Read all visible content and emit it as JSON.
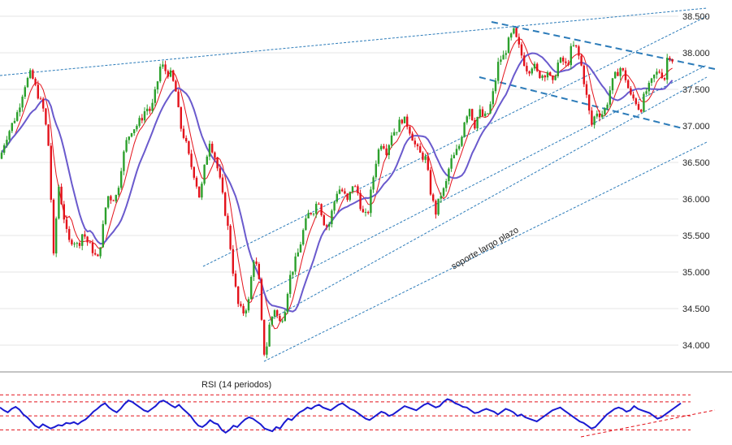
{
  "chart_data": [
    {
      "type": "candlestick",
      "title": "",
      "ylim": [
        33.7,
        38.6
      ],
      "y_ticks": [
        "38.500",
        "38.000",
        "37.500",
        "37.000",
        "36.500",
        "36.000",
        "35.500",
        "35.000",
        "34.500",
        "34.000"
      ],
      "grid": true,
      "colors": {
        "up": "#2ca02c",
        "down": "#e3121b",
        "ma_fast": "#e3121b",
        "ma_slow": "#6a5acd",
        "trend": "#2b7bb9",
        "grid": "#e6e6e6"
      },
      "annotations": [
        {
          "text": "soporte largo plazo"
        }
      ],
      "close_path": [
        [
          0,
          36.55
        ],
        [
          6,
          36.8
        ],
        [
          14,
          37.0
        ],
        [
          22,
          37.2
        ],
        [
          30,
          37.55
        ],
        [
          38,
          37.72
        ],
        [
          46,
          37.45
        ],
        [
          54,
          37.2
        ],
        [
          60,
          36.7
        ],
        [
          66,
          35.2
        ],
        [
          72,
          36.2
        ],
        [
          78,
          35.8
        ],
        [
          84,
          35.4
        ],
        [
          90,
          35.45
        ],
        [
          96,
          35.35
        ],
        [
          102,
          35.55
        ],
        [
          108,
          35.4
        ],
        [
          114,
          35.3
        ],
        [
          120,
          35.15
        ],
        [
          126,
          35.55
        ],
        [
          132,
          36.05
        ],
        [
          138,
          36.0
        ],
        [
          144,
          36.05
        ],
        [
          150,
          36.5
        ],
        [
          156,
          36.8
        ],
        [
          162,
          36.95
        ],
        [
          168,
          37.0
        ],
        [
          174,
          37.1
        ],
        [
          180,
          37.25
        ],
        [
          186,
          37.2
        ],
        [
          192,
          37.5
        ],
        [
          198,
          37.85
        ],
        [
          204,
          37.75
        ],
        [
          210,
          37.7
        ],
        [
          216,
          37.5
        ],
        [
          222,
          37.0
        ],
        [
          228,
          36.8
        ],
        [
          234,
          36.5
        ],
        [
          240,
          36.3
        ],
        [
          246,
          36.0
        ],
        [
          252,
          36.45
        ],
        [
          258,
          36.8
        ],
        [
          264,
          36.6
        ],
        [
          270,
          36.3
        ],
        [
          276,
          35.9
        ],
        [
          282,
          35.5
        ],
        [
          288,
          34.9
        ],
        [
          294,
          34.5
        ],
        [
          300,
          34.45
        ],
        [
          306,
          34.6
        ],
        [
          312,
          35.2
        ],
        [
          318,
          35.0
        ],
        [
          322,
          34.3
        ],
        [
          326,
          33.8
        ],
        [
          332,
          34.3
        ],
        [
          338,
          34.5
        ],
        [
          344,
          34.3
        ],
        [
          350,
          34.45
        ],
        [
          356,
          34.9
        ],
        [
          362,
          35.1
        ],
        [
          368,
          35.3
        ],
        [
          374,
          35.6
        ],
        [
          380,
          35.8
        ],
        [
          386,
          35.85
        ],
        [
          392,
          36.0
        ],
        [
          398,
          35.7
        ],
        [
          404,
          35.6
        ],
        [
          410,
          35.9
        ],
        [
          416,
          36.15
        ],
        [
          422,
          36.1
        ],
        [
          428,
          35.95
        ],
        [
          434,
          36.2
        ],
        [
          440,
          36.1
        ],
        [
          446,
          35.8
        ],
        [
          452,
          35.75
        ],
        [
          458,
          36.2
        ],
        [
          464,
          36.6
        ],
        [
          470,
          36.8
        ],
        [
          476,
          36.65
        ],
        [
          482,
          36.9
        ],
        [
          488,
          36.95
        ],
        [
          494,
          37.1
        ],
        [
          500,
          37.05
        ],
        [
          506,
          36.9
        ],
        [
          512,
          36.7
        ],
        [
          518,
          36.6
        ],
        [
          524,
          36.55
        ],
        [
          530,
          36.1
        ],
        [
          536,
          35.8
        ],
        [
          542,
          36.05
        ],
        [
          548,
          36.15
        ],
        [
          554,
          36.5
        ],
        [
          560,
          36.6
        ],
        [
          566,
          36.75
        ],
        [
          572,
          37.1
        ],
        [
          578,
          37.25
        ],
        [
          584,
          37.0
        ],
        [
          590,
          37.2
        ],
        [
          596,
          37.1
        ],
        [
          602,
          37.2
        ],
        [
          608,
          37.5
        ],
        [
          614,
          37.9
        ],
        [
          620,
          37.95
        ],
        [
          626,
          38.15
        ],
        [
          632,
          38.3
        ],
        [
          638,
          38.1
        ],
        [
          644,
          37.9
        ],
        [
          650,
          37.75
        ],
        [
          656,
          37.85
        ],
        [
          662,
          37.7
        ],
        [
          668,
          37.7
        ],
        [
          674,
          37.75
        ],
        [
          680,
          37.55
        ],
        [
          686,
          37.85
        ],
        [
          692,
          37.9
        ],
        [
          698,
          37.8
        ],
        [
          704,
          38.1
        ],
        [
          710,
          38.05
        ],
        [
          716,
          37.8
        ],
        [
          722,
          37.4
        ],
        [
          728,
          37.0
        ],
        [
          734,
          37.2
        ],
        [
          740,
          37.15
        ],
        [
          746,
          37.25
        ],
        [
          752,
          37.55
        ],
        [
          758,
          37.7
        ],
        [
          764,
          37.8
        ],
        [
          770,
          37.65
        ],
        [
          776,
          37.4
        ],
        [
          782,
          37.35
        ],
        [
          788,
          37.2
        ],
        [
          794,
          37.45
        ],
        [
          800,
          37.55
        ],
        [
          806,
          37.7
        ],
        [
          812,
          37.75
        ],
        [
          818,
          37.65
        ],
        [
          822,
          38.0
        ],
        [
          826,
          37.95
        ],
        [
          830,
          37.85
        ]
      ]
    },
    {
      "type": "line",
      "label": "RSI (14 periodos)",
      "colors": {
        "line": "#1a1ad1",
        "levels": "#e3121b"
      },
      "levels": [
        80,
        70,
        50,
        30
      ],
      "values": [
        62,
        58,
        55,
        60,
        63,
        59,
        52,
        48,
        42,
        36,
        33,
        38,
        35,
        32,
        34,
        37,
        36,
        40,
        39,
        41,
        38,
        42,
        45,
        50,
        56,
        60,
        65,
        68,
        62,
        58,
        55,
        60,
        67,
        72,
        70,
        66,
        62,
        58,
        56,
        60,
        64,
        70,
        72,
        69,
        65,
        62,
        66,
        60,
        55,
        50,
        42,
        36,
        34,
        38,
        44,
        40,
        38,
        30,
        26,
        30,
        36,
        34,
        40,
        45,
        48,
        46,
        42,
        38,
        32,
        30,
        28,
        34,
        32,
        40,
        46,
        44,
        50,
        55,
        58,
        62,
        60,
        64,
        66,
        62,
        60,
        58,
        62,
        66,
        68,
        64,
        60,
        58,
        54,
        50,
        46,
        44,
        48,
        52,
        56,
        54,
        50,
        52,
        56,
        60,
        64,
        62,
        60,
        58,
        62,
        66,
        68,
        65,
        62,
        64,
        70,
        74,
        72,
        68,
        66,
        63,
        62,
        58,
        54,
        55,
        58,
        60,
        58,
        56,
        52,
        56,
        60,
        58,
        55,
        50,
        52,
        48,
        46,
        44,
        42,
        46,
        50,
        54,
        58,
        60,
        62,
        58,
        54,
        50,
        46,
        42,
        40,
        36,
        32,
        34,
        40,
        46,
        52,
        56,
        60,
        62,
        60,
        56,
        58,
        64,
        60,
        58,
        56,
        54,
        50,
        46,
        48,
        52,
        56,
        60,
        64,
        68
      ]
    }
  ]
}
